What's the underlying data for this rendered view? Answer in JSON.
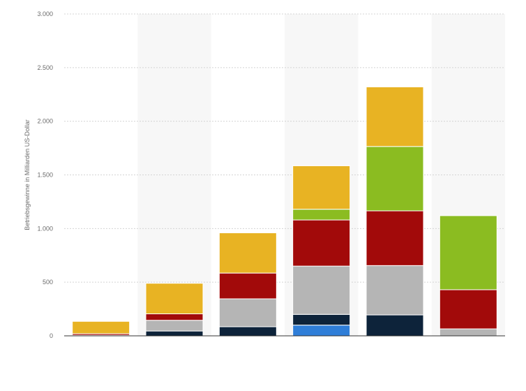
{
  "chart_data": {
    "type": "bar",
    "stacked": true,
    "categories": [
      "",
      "",
      "",
      "",
      "",
      ""
    ],
    "ylabel": "Betriebsgewinne in Milliarden US-Dollar",
    "xlabel": "",
    "ylim": [
      0,
      3000
    ],
    "yticks": [
      0,
      500,
      1000,
      1500,
      2000,
      2500,
      3000
    ],
    "ytick_labels": [
      "0",
      "500",
      "1.000",
      "1.500",
      "2.000",
      "2.500",
      "3.000"
    ],
    "grid": true,
    "legend": "none",
    "series": [
      {
        "color": "#2f7ed8",
        "values": [
          0,
          0,
          0,
          100,
          0,
          0
        ]
      },
      {
        "color": "#0d233a",
        "values": [
          5,
          45,
          85,
          100,
          195,
          0
        ]
      },
      {
        "color": "#b5b5b5",
        "values": [
          0,
          100,
          260,
          450,
          460,
          65
        ]
      },
      {
        "color": "#a20a0a",
        "values": [
          15,
          60,
          240,
          430,
          510,
          365
        ]
      },
      {
        "color": "#8bbc21",
        "values": [
          0,
          0,
          0,
          100,
          600,
          690
        ]
      },
      {
        "color": "#e8b323",
        "values": [
          115,
          285,
          375,
          405,
          555,
          0
        ]
      }
    ]
  }
}
